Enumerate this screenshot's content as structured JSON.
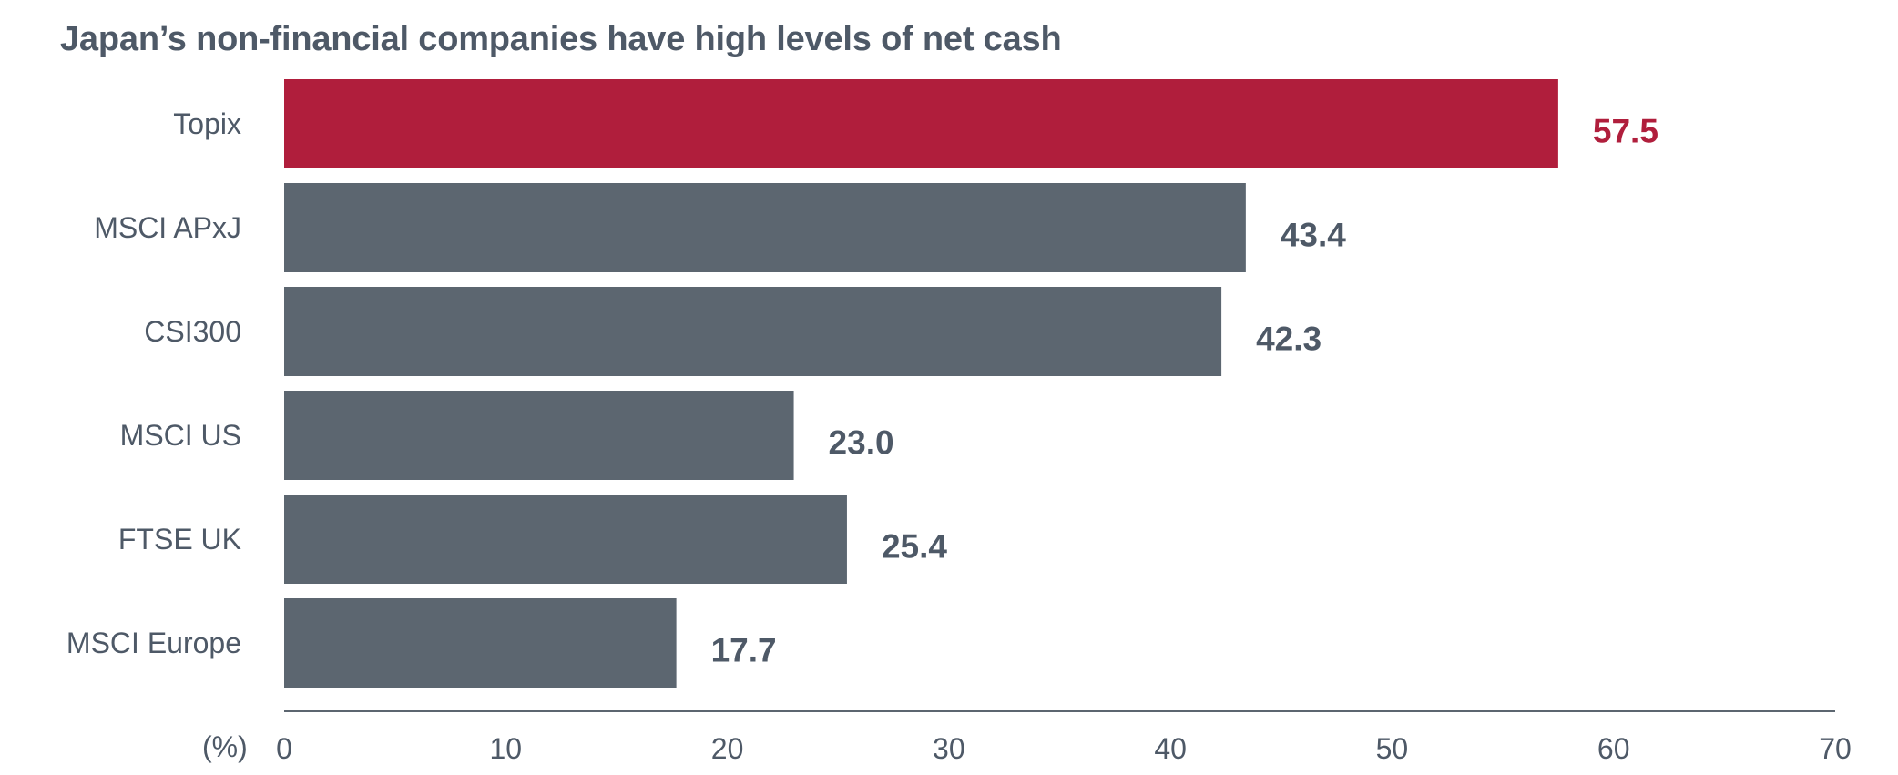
{
  "chart_data": {
    "type": "bar",
    "orientation": "horizontal",
    "title": "Japan’s non-financial companies have high levels of net cash",
    "xlabel": "(%)",
    "ylabel": "",
    "categories": [
      "Topix",
      "MSCI APxJ",
      "CSI300",
      "MSCI US",
      "FTSE UK",
      "MSCI Europe"
    ],
    "values": [
      57.5,
      43.4,
      42.3,
      23.0,
      25.4,
      17.7
    ],
    "value_labels": [
      "57.5",
      "43.4",
      "42.3",
      "23.0",
      "25.4",
      "17.7"
    ],
    "highlight_index": 0,
    "xlim": [
      0,
      70
    ],
    "x_ticks": [
      0,
      10,
      20,
      30,
      40,
      50,
      60,
      70
    ],
    "x_tick_labels": [
      "0",
      "10",
      "20",
      "30",
      "40",
      "50",
      "60",
      "70"
    ],
    "grid": false,
    "colors": {
      "highlight": "#b01e3c",
      "bar": "#5c6670",
      "text": "#4e5967",
      "axis": "#5c6670"
    }
  }
}
